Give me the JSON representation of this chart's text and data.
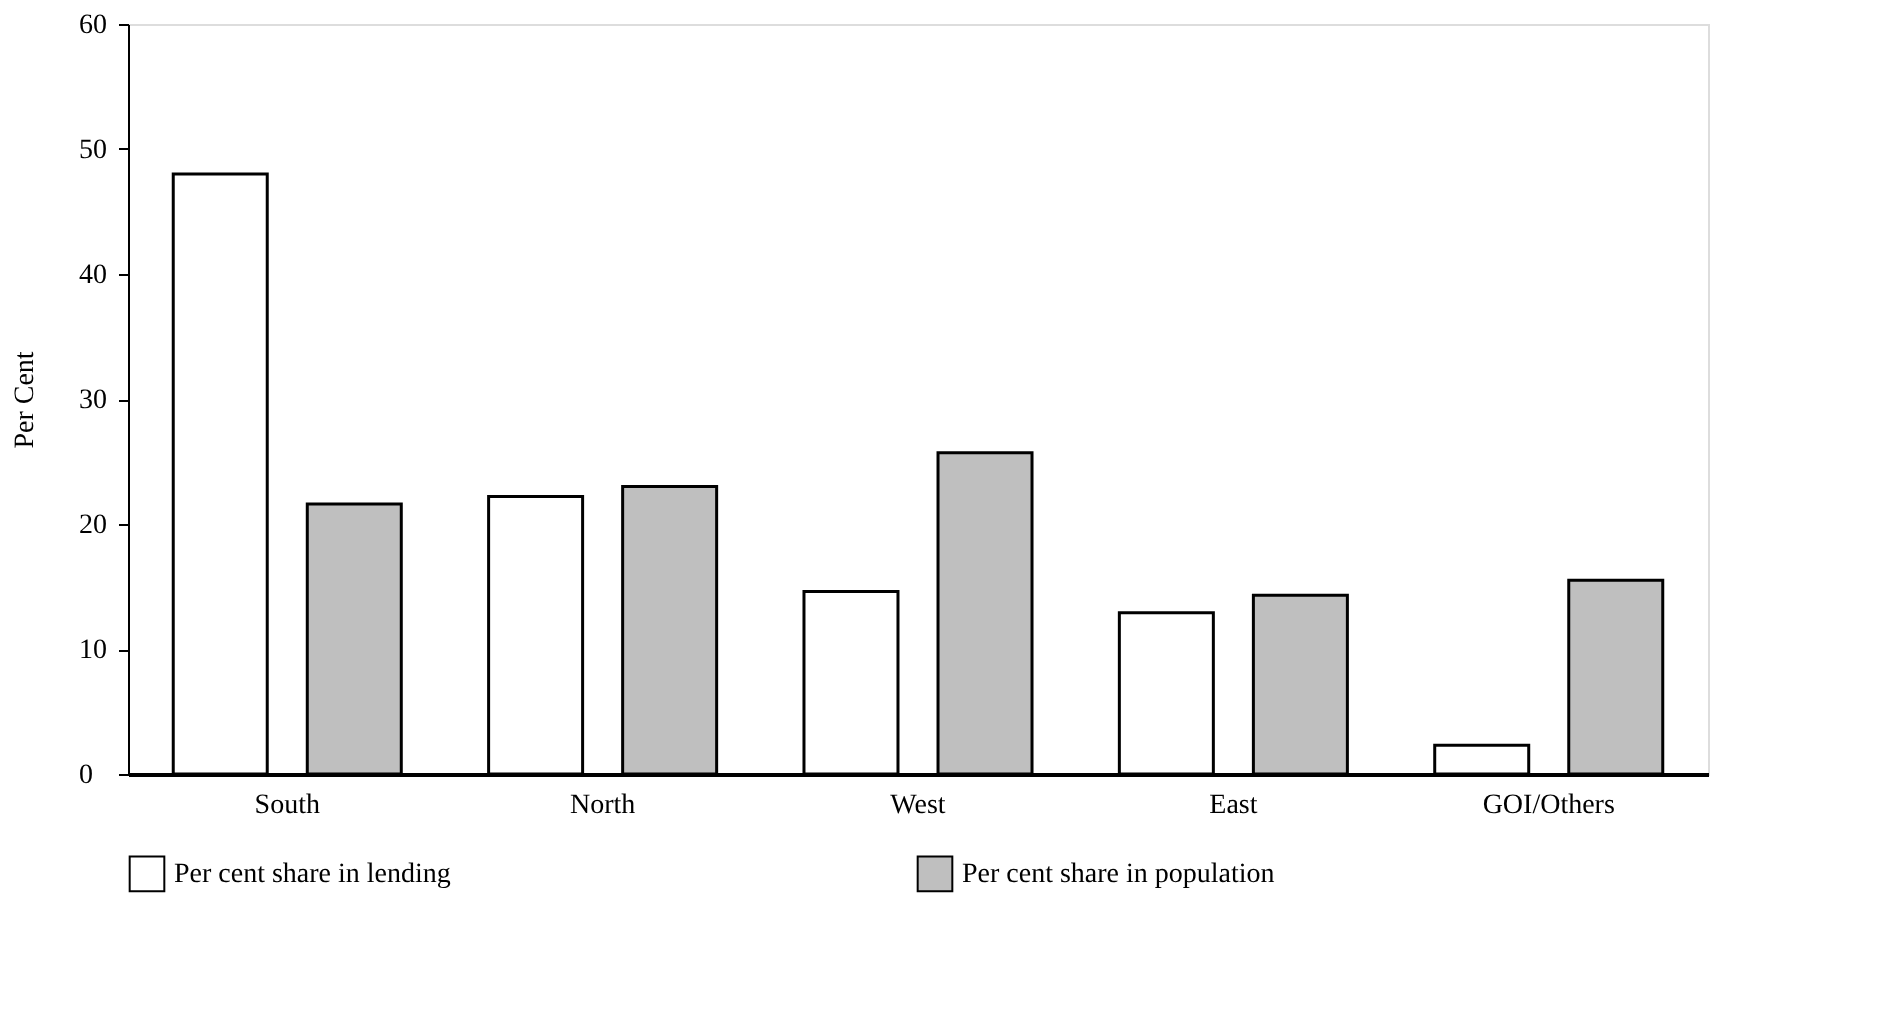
{
  "chart_data": {
    "type": "bar",
    "ylabel": "Per Cent",
    "categories": [
      "South",
      "North",
      "West",
      "East",
      "GOI/Others"
    ],
    "series": [
      {
        "name": "Per cent share in lending",
        "color": "#ffffff",
        "values": [
          48.0,
          22.2,
          14.6,
          12.9,
          2.3
        ]
      },
      {
        "name": "Per cent share in population",
        "color": "#bfbfbf",
        "values": [
          21.6,
          23.0,
          25.7,
          14.3,
          15.5
        ]
      }
    ],
    "ylim": [
      0,
      60
    ],
    "yticks": [
      0,
      10,
      20,
      30,
      40,
      50,
      60
    ],
    "grid": false,
    "legend": "bottom"
  }
}
